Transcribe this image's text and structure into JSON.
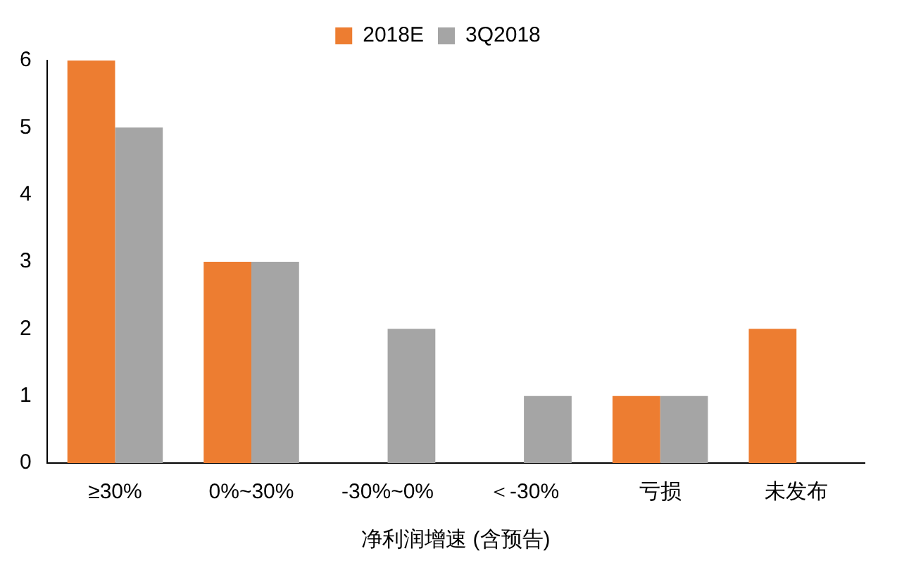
{
  "chart_data": {
    "type": "bar",
    "xlabel": "净利润增速 (含预告)",
    "categories": [
      "≥30%",
      "0%~30%",
      "-30%~0%",
      "＜-30%",
      "亏损",
      "未发布"
    ],
    "series": [
      {
        "name": "2018E",
        "color": "#ed7d31",
        "values": [
          6,
          3,
          0,
          0,
          1,
          2
        ]
      },
      {
        "name": "3Q2018",
        "color": "#a5a5a5",
        "values": [
          5,
          3,
          2,
          1,
          1,
          0
        ]
      }
    ],
    "ylim": [
      0,
      6
    ],
    "yticks": [
      0,
      1,
      2,
      3,
      4,
      5,
      6
    ],
    "grid": false,
    "legend": "top"
  }
}
